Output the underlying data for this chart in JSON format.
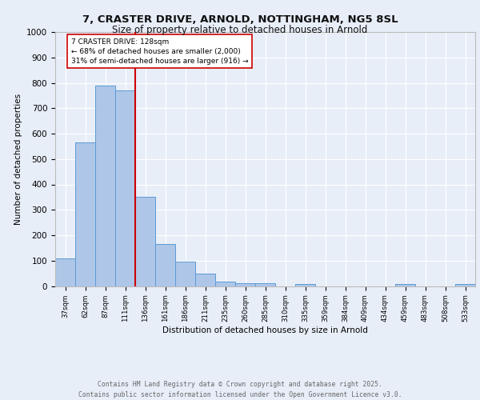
{
  "title_line1": "7, CRASTER DRIVE, ARNOLD, NOTTINGHAM, NG5 8SL",
  "title_line2": "Size of property relative to detached houses in Arnold",
  "xlabel": "Distribution of detached houses by size in Arnold",
  "ylabel": "Number of detached properties",
  "categories": [
    "37sqm",
    "62sqm",
    "87sqm",
    "111sqm",
    "136sqm",
    "161sqm",
    "186sqm",
    "211sqm",
    "235sqm",
    "260sqm",
    "285sqm",
    "310sqm",
    "335sqm",
    "359sqm",
    "384sqm",
    "409sqm",
    "434sqm",
    "459sqm",
    "483sqm",
    "508sqm",
    "533sqm"
  ],
  "values": [
    110,
    565,
    790,
    770,
    350,
    165,
    95,
    50,
    18,
    12,
    12,
    0,
    8,
    0,
    0,
    0,
    0,
    8,
    0,
    0,
    8
  ],
  "bar_color": "#aec6e8",
  "bar_edge_color": "#5b9bd5",
  "background_color": "#e8eef8",
  "grid_color": "#ffffff",
  "red_line_index": 4,
  "annotation_text": "7 CRASTER DRIVE: 128sqm\n← 68% of detached houses are smaller (2,000)\n31% of semi-detached houses are larger (916) →",
  "annotation_box_color": "#ffffff",
  "annotation_box_edge": "#cc0000",
  "red_line_color": "#cc0000",
  "footer_line1": "Contains HM Land Registry data © Crown copyright and database right 2025.",
  "footer_line2": "Contains public sector information licensed under the Open Government Licence v3.0.",
  "ylim": [
    0,
    1000
  ],
  "yticks": [
    0,
    100,
    200,
    300,
    400,
    500,
    600,
    700,
    800,
    900,
    1000
  ]
}
